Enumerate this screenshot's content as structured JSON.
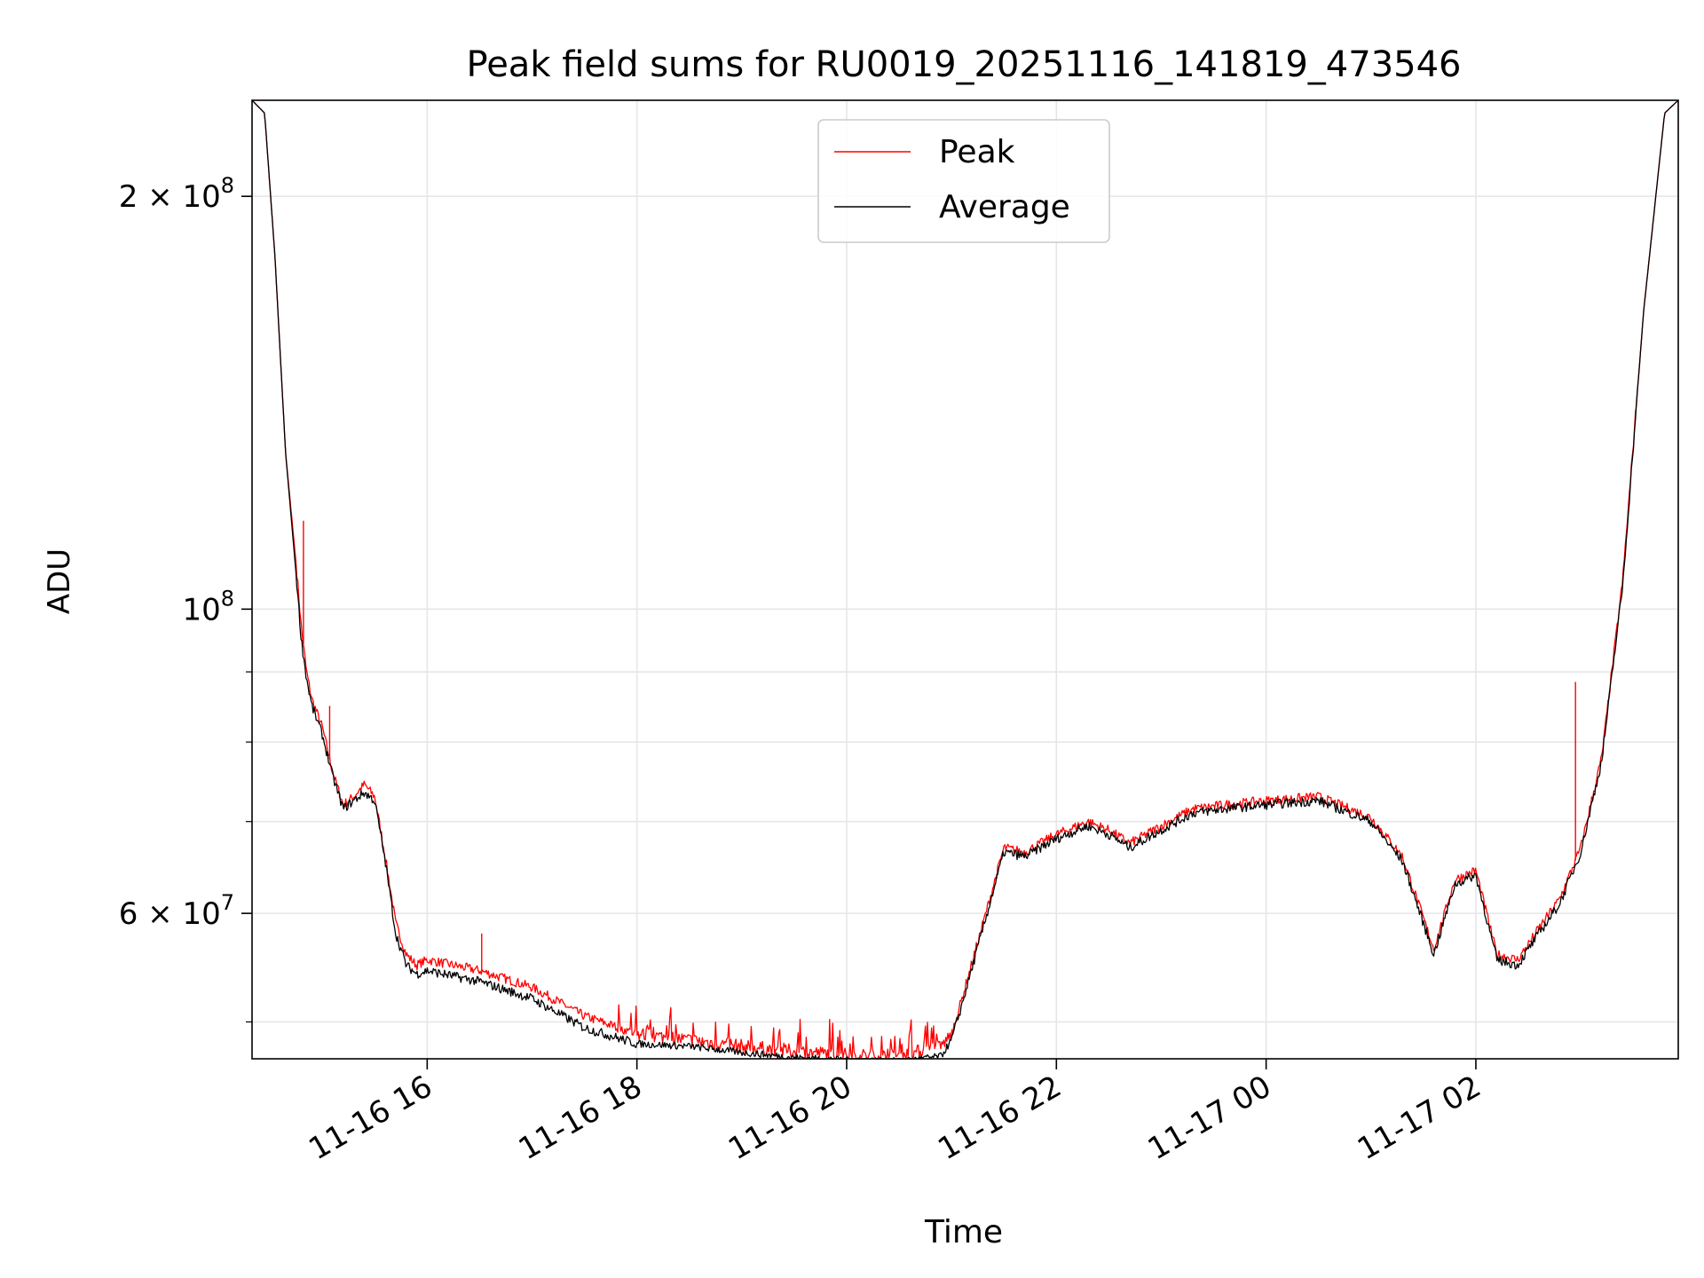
{
  "chart_data": {
    "type": "line",
    "title": "Peak field sums for RU0019_20251116_141819_473546",
    "xlabel": "Time",
    "ylabel": "ADU",
    "yscale": "log",
    "xlim_hours": [
      14.33,
      27.93
    ],
    "ylim": [
      47000000,
      235000000
    ],
    "grid": true,
    "legend_position": "upper center",
    "x_ticks": [
      {
        "hour": 16,
        "label": "11-16 16"
      },
      {
        "hour": 18,
        "label": "11-16 18"
      },
      {
        "hour": 20,
        "label": "11-16 20"
      },
      {
        "hour": 22,
        "label": "11-16 22"
      },
      {
        "hour": 24,
        "label": "11-17 00"
      },
      {
        "hour": 26,
        "label": "11-17 02"
      }
    ],
    "y_major_ticks": [
      {
        "value": 100000000,
        "base": "10",
        "exp": "8",
        "mantissa": ""
      },
      {
        "value": 60000000,
        "base": "10",
        "exp": "7",
        "mantissa": "6"
      },
      {
        "value": 200000000,
        "base": "10",
        "exp": "8",
        "mantissa": "2"
      }
    ],
    "y_minor_ticks": [
      50000000,
      70000000,
      80000000,
      90000000
    ],
    "series": [
      {
        "name": "Peak",
        "color": "#ff0000",
        "hours": [
          14.33,
          14.45,
          14.55,
          14.65,
          14.75,
          14.8,
          14.85,
          14.9,
          15.0,
          15.1,
          15.2,
          15.3,
          15.4,
          15.5,
          15.6,
          15.7,
          15.8,
          15.9,
          16.0,
          16.5,
          17.0,
          17.5,
          18.0,
          18.5,
          19.0,
          19.5,
          20.0,
          20.5,
          20.9,
          21.0,
          21.1,
          21.3,
          21.5,
          21.7,
          22.0,
          22.3,
          22.5,
          22.7,
          23.0,
          23.3,
          23.6,
          24.0,
          24.5,
          25.0,
          25.3,
          25.6,
          25.8,
          26.0,
          26.2,
          26.4,
          26.6,
          26.8,
          27.0,
          27.2,
          27.4,
          27.6,
          27.8,
          27.93
        ],
        "values": [
          235000000,
          230000000,
          180000000,
          130000000,
          108000000,
          97000000,
          90000000,
          86000000,
          82000000,
          76000000,
          72000000,
          73000000,
          74500000,
          73000000,
          66000000,
          59000000,
          56000000,
          55000000,
          55500000,
          54500000,
          53000000,
          50500000,
          49000000,
          48500000,
          48000000,
          47600000,
          47300000,
          47200000,
          48000000,
          49000000,
          52000000,
          59000000,
          67000000,
          66500000,
          68500000,
          70000000,
          69000000,
          67500000,
          69500000,
          71500000,
          72000000,
          72500000,
          73000000,
          70500000,
          66000000,
          56500000,
          63500000,
          64500000,
          56000000,
          55500000,
          58500000,
          61500000,
          67000000,
          78000000,
          105000000,
          165000000,
          230000000,
          235000000
        ]
      },
      {
        "name": "Average",
        "color": "#000000",
        "hours": [
          14.33,
          14.45,
          14.55,
          14.65,
          14.75,
          14.8,
          14.85,
          14.9,
          15.0,
          15.1,
          15.2,
          15.3,
          15.4,
          15.5,
          15.6,
          15.7,
          15.8,
          15.9,
          16.0,
          16.5,
          17.0,
          17.5,
          18.0,
          18.5,
          19.0,
          19.5,
          20.0,
          20.5,
          20.9,
          21.0,
          21.1,
          21.3,
          21.5,
          21.7,
          22.0,
          22.3,
          22.5,
          22.7,
          23.0,
          23.3,
          23.6,
          24.0,
          24.5,
          25.0,
          25.3,
          25.6,
          25.8,
          26.0,
          26.2,
          26.4,
          26.6,
          26.8,
          27.0,
          27.2,
          27.4,
          27.6,
          27.8,
          27.93
        ],
        "values": [
          235000000,
          230000000,
          180000000,
          130000000,
          106000000,
          95000000,
          89000000,
          85000000,
          81000000,
          75500000,
          71500000,
          72500000,
          73500000,
          72500000,
          65500000,
          58000000,
          55000000,
          54200000,
          54500000,
          53500000,
          52000000,
          49500000,
          48200000,
          48000000,
          47500000,
          47100000,
          46900000,
          46800000,
          47200000,
          48500000,
          51500000,
          58500000,
          66500000,
          66000000,
          68000000,
          69500000,
          68500000,
          67000000,
          69000000,
          71000000,
          71500000,
          72000000,
          72500000,
          70000000,
          65500000,
          56000000,
          63000000,
          64000000,
          55500000,
          55000000,
          58000000,
          61000000,
          66500000,
          77500000,
          104000000,
          165000000,
          230000000,
          235000000
        ]
      }
    ],
    "spikes": [
      {
        "series": "Peak",
        "hour": 14.82,
        "value": 116000000
      },
      {
        "series": "Peak",
        "hour": 15.07,
        "value": 85000000
      },
      {
        "series": "Peak",
        "hour": 16.52,
        "value": 58000000
      },
      {
        "series": "Peak",
        "hour": 26.95,
        "value": 88500000
      }
    ]
  }
}
